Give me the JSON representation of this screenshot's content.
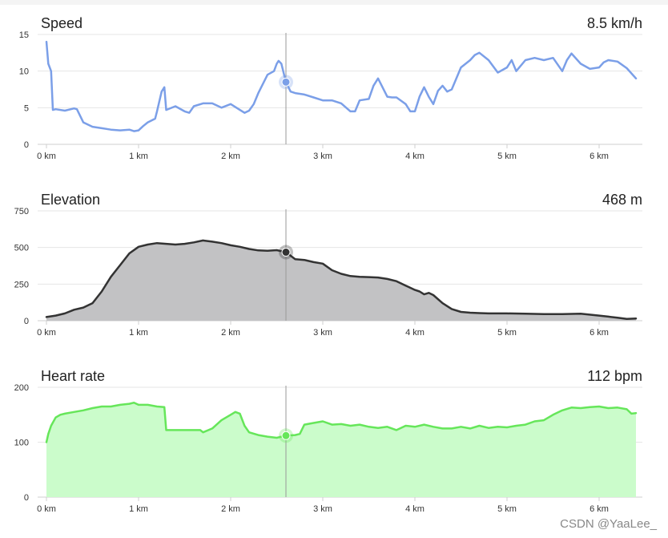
{
  "chart_data": [
    {
      "type": "line",
      "title": "Speed",
      "current_value": "8.5 km/h",
      "xlim": [
        0,
        6.4
      ],
      "ylim": [
        0,
        15
      ],
      "x_ticks": [
        "0 km",
        "1 km",
        "2 km",
        "3 km",
        "4 km",
        "5 km",
        "6 km"
      ],
      "y_ticks": [
        "0",
        "5",
        "10",
        "15"
      ],
      "y_tick_values": [
        0,
        5,
        10,
        15
      ],
      "line_color": "#7b9fe8",
      "fill": false,
      "marker_x": 2.6,
      "marker_y": 8.5,
      "x": [
        0,
        0.02,
        0.05,
        0.07,
        0.1,
        0.2,
        0.3,
        0.33,
        0.4,
        0.5,
        0.6,
        0.7,
        0.8,
        0.9,
        0.95,
        1.0,
        1.05,
        1.1,
        1.18,
        1.2,
        1.25,
        1.28,
        1.3,
        1.4,
        1.5,
        1.55,
        1.6,
        1.7,
        1.8,
        1.9,
        2.0,
        2.1,
        2.15,
        2.2,
        2.25,
        2.3,
        2.4,
        2.47,
        2.5,
        2.52,
        2.55,
        2.6,
        2.65,
        2.7,
        2.8,
        2.9,
        3.0,
        3.1,
        3.2,
        3.3,
        3.35,
        3.4,
        3.5,
        3.55,
        3.6,
        3.7,
        3.75,
        3.8,
        3.9,
        3.95,
        4.0,
        4.05,
        4.1,
        4.15,
        4.2,
        4.25,
        4.3,
        4.35,
        4.4,
        4.5,
        4.6,
        4.65,
        4.7,
        4.8,
        4.9,
        5.0,
        5.05,
        5.1,
        5.2,
        5.3,
        5.4,
        5.5,
        5.6,
        5.65,
        5.7,
        5.8,
        5.9,
        6.0,
        6.05,
        6.1,
        6.2,
        6.3,
        6.4
      ],
      "y": [
        14,
        11,
        10,
        4.7,
        4.8,
        4.6,
        4.9,
        4.8,
        3.0,
        2.4,
        2.2,
        2.0,
        1.9,
        2.0,
        1.8,
        1.9,
        2.5,
        3.0,
        3.5,
        4.5,
        7.2,
        7.8,
        4.7,
        5.2,
        4.5,
        4.3,
        5.2,
        5.6,
        5.6,
        5.0,
        5.5,
        4.7,
        4.3,
        4.6,
        5.5,
        7.0,
        9.5,
        10.0,
        11.0,
        11.4,
        11.0,
        8.5,
        7.2,
        7.0,
        6.8,
        6.4,
        6.0,
        6.0,
        5.6,
        4.5,
        4.5,
        6.0,
        6.2,
        8.0,
        9.0,
        6.5,
        6.4,
        6.4,
        5.5,
        4.5,
        4.5,
        6.5,
        7.8,
        6.5,
        5.5,
        7.3,
        8.0,
        7.2,
        7.5,
        10.5,
        11.5,
        12.2,
        12.5,
        11.5,
        9.8,
        10.5,
        11.5,
        10.0,
        11.5,
        11.8,
        11.5,
        11.8,
        10.0,
        11.5,
        12.4,
        11.0,
        10.3,
        10.5,
        11.2,
        11.5,
        11.3,
        10.4,
        9.0
      ]
    },
    {
      "type": "area",
      "title": "Elevation",
      "current_value": "468 m",
      "xlim": [
        0,
        6.4
      ],
      "ylim": [
        0,
        750
      ],
      "x_ticks": [
        "0 km",
        "1 km",
        "2 km",
        "3 km",
        "4 km",
        "5 km",
        "6 km"
      ],
      "y_ticks": [
        "0",
        "250",
        "500",
        "750"
      ],
      "y_tick_values": [
        0,
        250,
        500,
        750
      ],
      "line_color": "#333333",
      "fill_color": "#c2c2c4",
      "fill": true,
      "marker_x": 2.6,
      "marker_y": 468,
      "x": [
        0,
        0.1,
        0.2,
        0.3,
        0.4,
        0.5,
        0.6,
        0.7,
        0.8,
        0.9,
        1.0,
        1.1,
        1.2,
        1.3,
        1.4,
        1.5,
        1.6,
        1.7,
        1.8,
        1.9,
        2.0,
        2.1,
        2.2,
        2.3,
        2.4,
        2.5,
        2.6,
        2.7,
        2.8,
        2.9,
        3.0,
        3.1,
        3.2,
        3.3,
        3.4,
        3.5,
        3.6,
        3.7,
        3.8,
        3.9,
        4.0,
        4.05,
        4.1,
        4.15,
        4.2,
        4.3,
        4.4,
        4.5,
        4.6,
        4.7,
        4.8,
        5.0,
        5.2,
        5.4,
        5.6,
        5.8,
        6.0,
        6.1,
        6.2,
        6.3,
        6.4
      ],
      "y": [
        25,
        35,
        50,
        75,
        90,
        120,
        200,
        300,
        380,
        460,
        505,
        520,
        530,
        525,
        520,
        525,
        535,
        548,
        540,
        530,
        515,
        505,
        490,
        480,
        478,
        482,
        468,
        420,
        415,
        400,
        390,
        345,
        320,
        305,
        300,
        298,
        295,
        285,
        270,
        240,
        210,
        200,
        180,
        190,
        175,
        120,
        80,
        60,
        55,
        52,
        50,
        50,
        48,
        45,
        45,
        48,
        35,
        28,
        20,
        12,
        15
      ]
    },
    {
      "type": "area",
      "title": "Heart rate",
      "current_value": "112 bpm",
      "xlim": [
        0,
        6.4
      ],
      "ylim": [
        0,
        200
      ],
      "x_ticks": [
        "0 km",
        "1 km",
        "2 km",
        "3 km",
        "4 km",
        "5 km",
        "6 km"
      ],
      "y_ticks": [
        "0",
        "100",
        "200"
      ],
      "y_tick_values": [
        0,
        100,
        200
      ],
      "line_color": "#66e65a",
      "fill_color": "#cbfccb",
      "fill": true,
      "marker_x": 2.6,
      "marker_y": 112,
      "x": [
        0,
        0.02,
        0.05,
        0.1,
        0.15,
        0.2,
        0.3,
        0.4,
        0.5,
        0.6,
        0.7,
        0.8,
        0.9,
        0.95,
        1.0,
        1.1,
        1.2,
        1.28,
        1.3,
        1.4,
        1.5,
        1.6,
        1.67,
        1.7,
        1.8,
        1.9,
        2.0,
        2.05,
        2.1,
        2.15,
        2.2,
        2.3,
        2.4,
        2.5,
        2.6,
        2.7,
        2.75,
        2.8,
        2.9,
        3.0,
        3.1,
        3.2,
        3.3,
        3.4,
        3.5,
        3.6,
        3.7,
        3.8,
        3.9,
        4.0,
        4.1,
        4.2,
        4.3,
        4.4,
        4.5,
        4.6,
        4.7,
        4.8,
        4.9,
        5.0,
        5.1,
        5.2,
        5.3,
        5.4,
        5.5,
        5.6,
        5.7,
        5.8,
        5.9,
        6.0,
        6.1,
        6.2,
        6.3,
        6.35,
        6.4
      ],
      "y": [
        100,
        115,
        130,
        145,
        150,
        152,
        155,
        158,
        162,
        165,
        165,
        168,
        170,
        172,
        168,
        168,
        165,
        164,
        122,
        122,
        122,
        122,
        122,
        118,
        125,
        140,
        150,
        155,
        152,
        130,
        118,
        113,
        110,
        108,
        112,
        113,
        115,
        132,
        135,
        138,
        132,
        133,
        130,
        132,
        128,
        126,
        128,
        122,
        130,
        128,
        132,
        128,
        125,
        125,
        128,
        125,
        130,
        126,
        128,
        127,
        130,
        132,
        138,
        140,
        150,
        158,
        163,
        162,
        164,
        165,
        162,
        163,
        160,
        152,
        153
      ]
    }
  ],
  "watermark": "CSDN @YaaLee_"
}
